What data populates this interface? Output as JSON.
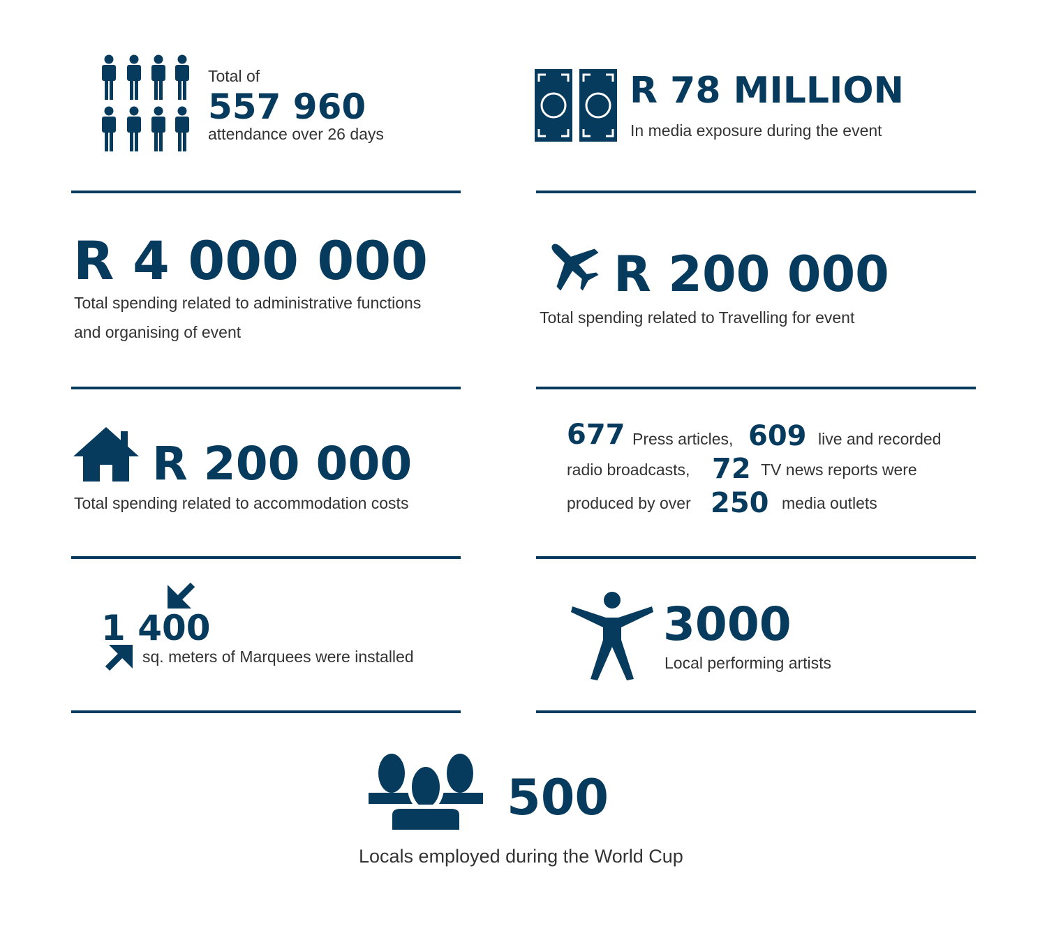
{
  "attendance": {
    "prefix": "Total of",
    "value": "557 960",
    "caption": "attendance over 26 days",
    "icon": "people-grid-icon"
  },
  "media_exposure": {
    "value": "R 78 MILLION",
    "caption": "In media exposure during the event",
    "icon": "banknotes-icon"
  },
  "admin_spending": {
    "value": "R 4 000 000",
    "caption_line1": "Total spending related to administrative functions",
    "caption_line2": "and organising of event"
  },
  "travel_spending": {
    "value": "R 200 000",
    "caption": "Total spending related to Travelling for event",
    "icon": "airplane-icon"
  },
  "accommodation_spending": {
    "value": "R 200 000",
    "caption": "Total spending related to accommodation costs",
    "icon": "house-icon"
  },
  "media_coverage": {
    "press_count": "677",
    "press_label": "Press articles,",
    "radio_count": "609",
    "radio_label_1": "live and recorded",
    "radio_label_2": "radio broadcasts,",
    "tv_count": "72",
    "tv_label": "TV news reports were",
    "outlets_prefix": "produced by over",
    "outlets_count": "250",
    "outlets_label": "media outlets"
  },
  "marquees": {
    "value": "1 400",
    "caption": "sq. meters of Marquees were installed",
    "icon": "resize-arrows-icon"
  },
  "artists": {
    "value": "3000",
    "caption": "Local performing artists",
    "icon": "person-arms-out-icon"
  },
  "employment": {
    "value": "500",
    "caption": "Locals employed during the World Cup",
    "icon": "group-people-icon"
  },
  "colors": {
    "accent": "#073b5e",
    "text": "#333333",
    "background": "#ffffff"
  }
}
